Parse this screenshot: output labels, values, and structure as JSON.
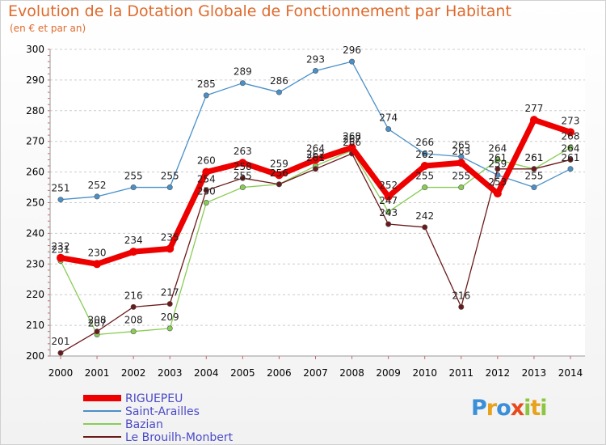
{
  "chart_data": {
    "type": "line",
    "title": "Evolution de la Dotation Globale de Fonctionnement par Habitant",
    "subtitle": "(en € et par an)",
    "xlabel": "",
    "ylabel": "",
    "ylim": [
      200,
      300
    ],
    "yticks": [
      200,
      210,
      220,
      230,
      240,
      250,
      260,
      270,
      280,
      290,
      300
    ],
    "x": [
      "2000",
      "2001",
      "2002",
      "2003",
      "2004",
      "2005",
      "2006",
      "2007",
      "2008",
      "2009",
      "2010",
      "2011",
      "2012",
      "2013",
      "2014"
    ],
    "grid": "horizontal",
    "legend_position": "bottom-left",
    "series": [
      {
        "name": "Saint-Arailles",
        "color": "#4a90c8",
        "values": [
          251,
          252,
          255,
          255,
          285,
          289,
          286,
          293,
          296,
          274,
          266,
          265,
          259,
          255,
          261
        ]
      },
      {
        "name": "Bazian",
        "color": "#88cc55",
        "values": [
          231,
          207,
          208,
          209,
          250,
          255,
          256,
          262,
          267,
          247,
          255,
          255,
          264,
          261,
          268
        ]
      },
      {
        "name": "Le Brouilh-Monbert",
        "color": "#6b1a1a",
        "values": [
          201,
          208,
          216,
          217,
          254,
          258,
          256,
          261,
          266,
          243,
          242,
          216,
          261,
          261,
          264
        ]
      },
      {
        "name": "RIGUEPEU",
        "color": "#ee0000",
        "values": [
          232,
          230,
          234,
          235,
          260,
          263,
          259,
          264,
          268,
          252,
          262,
          263,
          253,
          277,
          273
        ]
      }
    ],
    "legend_order": [
      "RIGUEPEU",
      "Saint-Arailles",
      "Bazian",
      "Le Brouilh-Monbert"
    ]
  },
  "logo": {
    "letters": [
      "P",
      "r",
      "o",
      "x",
      "i",
      "t",
      "i"
    ],
    "colors": [
      "#3a8fd8",
      "#e8a21b",
      "#3a8fd8",
      "#e84b1b",
      "#8cc63f",
      "#e8a21b",
      "#8cc63f"
    ]
  }
}
